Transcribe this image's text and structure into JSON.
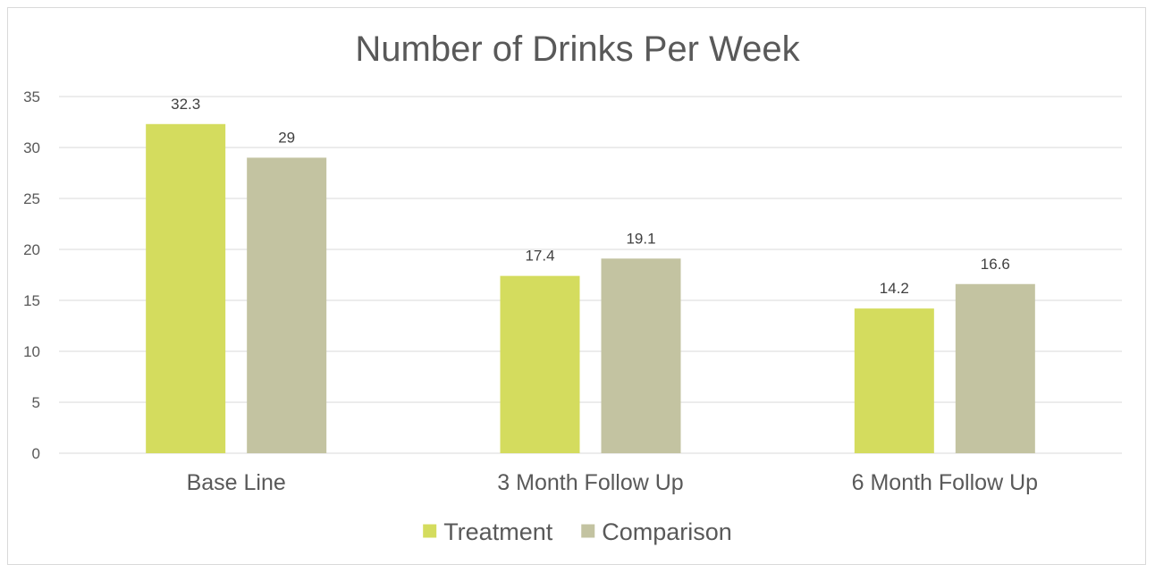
{
  "chart_data": {
    "type": "bar",
    "title": "Number of Drinks Per Week",
    "categories": [
      "Base Line",
      "3 Month Follow Up",
      "6 Month Follow Up"
    ],
    "series": [
      {
        "name": "Treatment",
        "values": [
          32.3,
          17.4,
          14.2
        ],
        "color": "#d4dc5e"
      },
      {
        "name": "Comparison",
        "values": [
          29,
          19.1,
          16.6
        ],
        "color": "#c3c3a1"
      }
    ],
    "y_ticks": [
      "0",
      "5",
      "10",
      "15",
      "20",
      "25",
      "30",
      "35"
    ],
    "ylim": [
      0,
      35
    ],
    "grid": true,
    "gridline_color": "#d9d9d9",
    "legend_position": "bottom"
  }
}
